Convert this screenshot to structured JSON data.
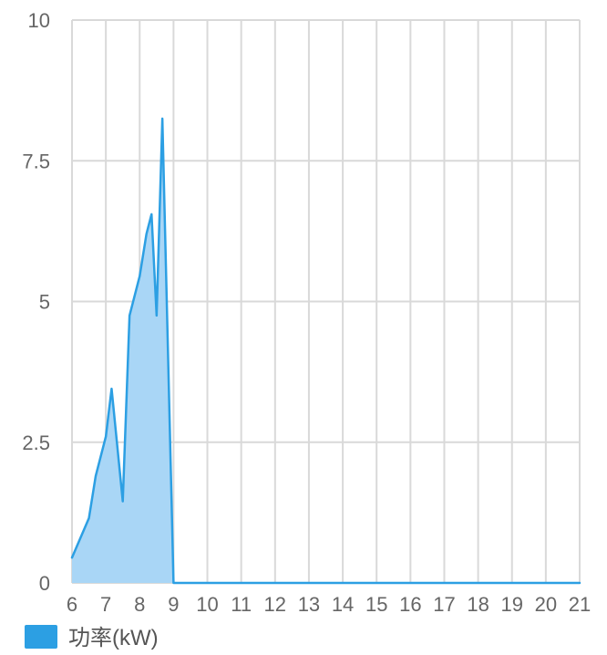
{
  "chart_data": {
    "type": "area",
    "x": [
      6,
      6.5,
      6.7,
      7,
      7.17,
      7.5,
      7.7,
      8,
      8.2,
      8.35,
      8.5,
      8.67,
      9,
      21
    ],
    "series": [
      {
        "name": "功率(kW)",
        "values": [
          0.45,
          1.15,
          1.9,
          2.6,
          3.45,
          1.45,
          4.75,
          5.45,
          6.2,
          6.55,
          4.75,
          8.25,
          0,
          0
        ],
        "color": "#2c9fe3",
        "fill": "#a9d6f6"
      }
    ],
    "xlim": [
      6,
      21
    ],
    "ylim": [
      0,
      10
    ],
    "x_ticks": [
      "6",
      "7",
      "8",
      "9",
      "10",
      "11",
      "12",
      "13",
      "14",
      "15",
      "16",
      "17",
      "18",
      "19",
      "20",
      "21"
    ],
    "y_ticks": [
      "0",
      "2.5",
      "5",
      "7.5",
      "10"
    ],
    "grid": true,
    "legend_position": "bottom-left"
  }
}
